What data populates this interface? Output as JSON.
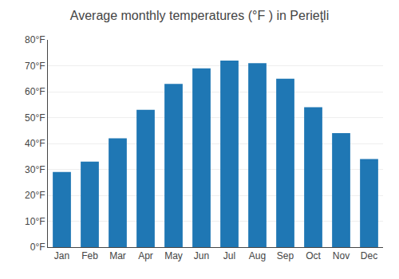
{
  "chart_data": {
    "type": "bar",
    "title": "Average monthly temperatures (°F ) in Perieţli",
    "categories": [
      "Jan",
      "Feb",
      "Mar",
      "Apr",
      "May",
      "Jun",
      "Jul",
      "Aug",
      "Sep",
      "Oct",
      "Nov",
      "Dec"
    ],
    "values": [
      29,
      33,
      42,
      53,
      63,
      69,
      72,
      71,
      65,
      54,
      44,
      34
    ],
    "ylim": [
      0,
      80
    ],
    "yticks": [
      {
        "value": 0,
        "label": "0°F"
      },
      {
        "value": 10,
        "label": "10°F"
      },
      {
        "value": 20,
        "label": "20°F"
      },
      {
        "value": 30,
        "label": "30°F"
      },
      {
        "value": 40,
        "label": "40°F"
      },
      {
        "value": 50,
        "label": "50°F"
      },
      {
        "value": 60,
        "label": "60°F"
      },
      {
        "value": 70,
        "label": "70°F"
      },
      {
        "value": 80,
        "label": "80°F"
      }
    ],
    "grid": true
  }
}
